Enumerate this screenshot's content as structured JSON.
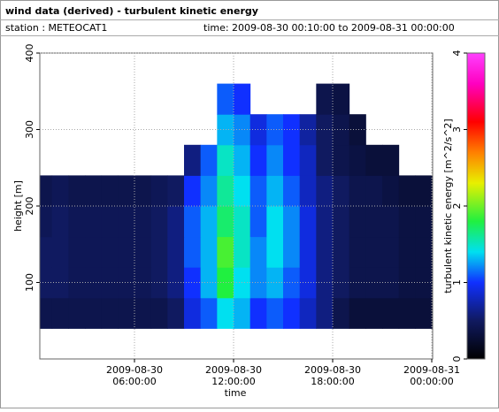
{
  "chart_data": {
    "type": "heatmap",
    "title": "wind data (derived) - turbulent kinetic energy",
    "station": "station : METEOCAT1",
    "period": "time: 2009-08-30 00:10:00 to 2009-08-31 00:00:00",
    "xlabel": "time",
    "ylabel": "height [m]",
    "colorbar_label": "turbulent kinetic energy [m^2/s^2]",
    "x_bins": [
      0,
      1,
      2,
      3,
      4,
      5,
      6,
      7,
      8,
      9,
      10,
      11,
      12,
      13,
      14,
      15,
      16,
      17,
      18,
      19,
      20,
      21,
      22,
      23,
      24
    ],
    "y_bins": [
      40,
      80,
      120,
      160,
      200,
      240,
      280,
      320,
      360
    ],
    "values": [
      [
        0.4,
        0.4,
        0.4,
        0.4,
        0.4,
        0.4,
        0.4,
        0.4,
        0.5,
        0.9,
        1.1,
        1.4,
        1.3,
        1.0,
        1.1,
        1.0,
        0.8,
        0.6,
        0.4,
        0.3,
        0.3,
        0.3,
        0.3,
        0.3
      ],
      [
        0.5,
        0.5,
        0.45,
        0.45,
        0.45,
        0.45,
        0.45,
        0.5,
        0.6,
        1.0,
        1.3,
        1.8,
        1.4,
        1.2,
        1.3,
        1.1,
        0.9,
        0.6,
        0.5,
        0.4,
        0.4,
        0.4,
        0.35,
        0.35
      ],
      [
        0.5,
        0.5,
        0.45,
        0.45,
        0.45,
        0.45,
        0.45,
        0.5,
        0.6,
        1.1,
        1.3,
        1.9,
        1.5,
        1.2,
        1.4,
        1.2,
        0.9,
        0.6,
        0.5,
        0.4,
        0.4,
        0.4,
        0.35,
        0.35
      ],
      [
        0.45,
        0.5,
        0.45,
        0.45,
        0.45,
        0.45,
        0.45,
        0.5,
        0.6,
        1.1,
        1.3,
        1.7,
        1.5,
        1.1,
        1.4,
        1.2,
        0.9,
        0.6,
        0.5,
        0.4,
        0.4,
        0.4,
        0.35,
        0.35
      ],
      [
        0.4,
        0.45,
        0.4,
        0.4,
        0.4,
        0.4,
        0.4,
        0.45,
        0.5,
        1.0,
        1.2,
        1.6,
        1.4,
        1.1,
        1.3,
        1.1,
        0.8,
        0.6,
        0.5,
        0.4,
        0.4,
        0.35,
        0.3,
        0.3
      ],
      [
        null,
        null,
        null,
        null,
        null,
        null,
        null,
        null,
        null,
        0.6,
        1.1,
        1.5,
        1.3,
        1.0,
        1.2,
        1.0,
        0.8,
        0.5,
        0.4,
        0.35,
        0.3,
        0.3,
        null,
        null
      ],
      [
        null,
        null,
        null,
        null,
        null,
        null,
        null,
        null,
        null,
        null,
        null,
        1.3,
        1.2,
        0.9,
        1.1,
        1.0,
        0.7,
        0.5,
        0.4,
        0.3,
        null,
        null,
        null,
        null
      ],
      [
        null,
        null,
        null,
        null,
        null,
        null,
        null,
        null,
        null,
        null,
        null,
        1.1,
        1.0,
        null,
        null,
        null,
        null,
        0.4,
        0.35,
        null,
        null,
        null,
        null,
        null
      ]
    ],
    "xlim": [
      0,
      24
    ],
    "xticks": [
      {
        "value": 6,
        "label": "2009-08-30\n06:00:00"
      },
      {
        "value": 12,
        "label": "2009-08-30\n12:00:00"
      },
      {
        "value": 18,
        "label": "2009-08-30\n18:00:00"
      },
      {
        "value": 24,
        "label": "2009-08-31\n00:00:00"
      }
    ],
    "ylim": [
      0,
      400
    ],
    "yticks": [
      100,
      200,
      300,
      400
    ],
    "clim": [
      0,
      4
    ],
    "cticks": [
      0,
      1,
      2,
      3,
      4
    ],
    "colorscale": [
      [
        0,
        "#000000"
      ],
      [
        0.5,
        "#101a60"
      ],
      [
        1,
        "#1030ff"
      ],
      [
        1.4,
        "#00e0f0"
      ],
      [
        1.8,
        "#20f040"
      ],
      [
        2.3,
        "#e8f000"
      ],
      [
        2.7,
        "#ff8000"
      ],
      [
        3.1,
        "#ff0000"
      ],
      [
        3.6,
        "#ff00c0"
      ],
      [
        4,
        "#ff40ff"
      ]
    ],
    "grid": true
  }
}
